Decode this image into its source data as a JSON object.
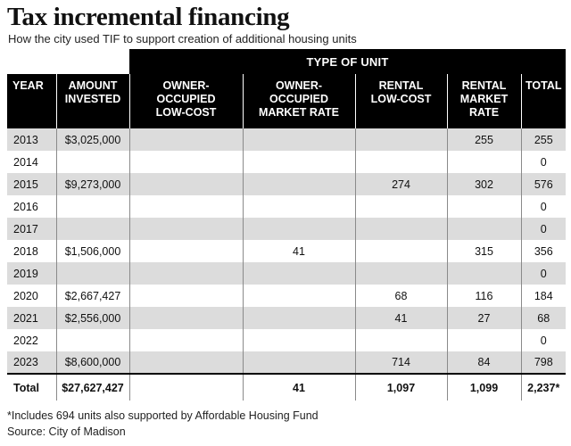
{
  "title": "Tax incremental financing",
  "subtitle": "How the city used TIF to support creation of additional housing units",
  "group_header": "TYPE OF UNIT",
  "columns": [
    [
      "YEAR"
    ],
    [
      "AMOUNT",
      "INVESTED"
    ],
    [
      "OWNER-",
      "OCCUPIED",
      "LOW-COST"
    ],
    [
      "OWNER-",
      "OCCUPIED",
      "MARKET RATE"
    ],
    [
      "RENTAL",
      "LOW-COST"
    ],
    [
      "RENTAL",
      "MARKET",
      "RATE"
    ],
    [
      "TOTAL"
    ]
  ],
  "rows": [
    [
      "2013",
      "$3,025,000",
      "",
      "",
      "",
      "255",
      "255"
    ],
    [
      "2014",
      "",
      "",
      "",
      "",
      "",
      "0"
    ],
    [
      "2015",
      "$9,273,000",
      "",
      "",
      "274",
      "302",
      "576"
    ],
    [
      "2016",
      "",
      "",
      "",
      "",
      "",
      "0"
    ],
    [
      "2017",
      "",
      "",
      "",
      "",
      "",
      "0"
    ],
    [
      "2018",
      "$1,506,000",
      "",
      "41",
      "",
      "315",
      "356"
    ],
    [
      "2019",
      "",
      "",
      "",
      "",
      "",
      "0"
    ],
    [
      "2020",
      "$2,667,427",
      "",
      "",
      "68",
      "116",
      "184"
    ],
    [
      "2021",
      "$2,556,000",
      "",
      "",
      "41",
      "27",
      "68"
    ],
    [
      "2022",
      "",
      "",
      "",
      "",
      "",
      "0"
    ],
    [
      "2023",
      "$8,600,000",
      "",
      "",
      "714",
      "84",
      "798"
    ]
  ],
  "total_row": [
    "Total",
    "$27,627,427",
    "",
    "41",
    "1,097",
    "1,099",
    "2,237*"
  ],
  "footnote": "*Includes 694 units also supported by Affordable Housing Fund",
  "source": "Source: City of Madison"
}
